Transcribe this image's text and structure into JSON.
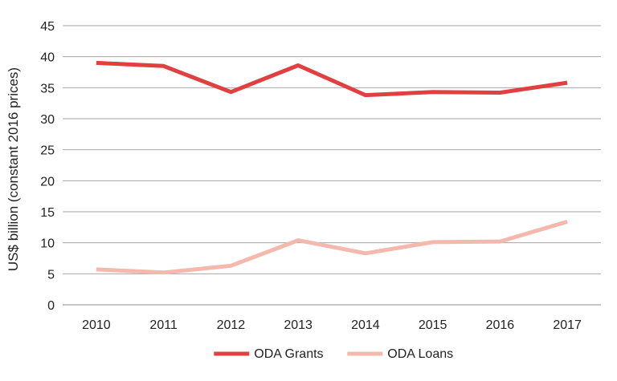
{
  "chart_data": {
    "type": "line",
    "title": "",
    "xlabel": "",
    "ylabel": "US$ billion (constant 2016 prices)",
    "categories": [
      "2010",
      "2011",
      "2012",
      "2013",
      "2014",
      "2015",
      "2016",
      "2017"
    ],
    "yticks": [
      "0",
      "5",
      "10",
      "15",
      "20",
      "25",
      "30",
      "35",
      "40",
      "45"
    ],
    "ylim": [
      0,
      45
    ],
    "grid": true,
    "legend_position": "bottom",
    "series": [
      {
        "name": "ODA Grants",
        "color": "#e04040",
        "values": [
          39.0,
          38.5,
          34.3,
          38.6,
          33.8,
          34.3,
          34.2,
          35.8
        ]
      },
      {
        "name": "ODA Loans",
        "color": "#f4b8ad",
        "values": [
          5.7,
          5.2,
          6.3,
          10.4,
          8.3,
          10.1,
          10.2,
          13.4
        ]
      }
    ]
  }
}
